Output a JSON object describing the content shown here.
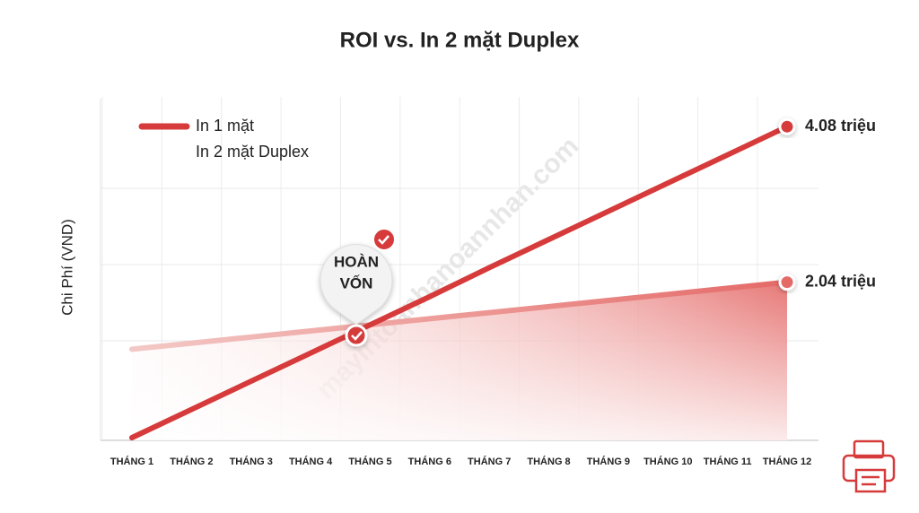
{
  "chart_data": {
    "type": "line",
    "title": "ROI vs. In 2 mặt  Duplex",
    "y_label": "Chi Phí (VND)",
    "categories": [
      "THÁNG 1",
      "THÁNG 2",
      "THÁNG 3",
      "THÁNG 4",
      "THÁNG 5",
      "THÁNG 6",
      "THÁNG 7",
      "THÁNG 8",
      "THÁNG 9",
      "THÁNG 10",
      "THÁNG 11",
      "THÁNG 12"
    ],
    "series": [
      {
        "name": "In 1 mặt",
        "color": "#d63a3a",
        "values": [
          0,
          0.37,
          0.74,
          1.11,
          1.48,
          1.85,
          2.23,
          2.6,
          2.97,
          3.34,
          3.71,
          4.08
        ],
        "value_labels": [
          null,
          null,
          null,
          null,
          null,
          null,
          null,
          null,
          null,
          null,
          null,
          "4.08 triệu"
        ]
      },
      {
        "name": "In 2 mặt Duplex",
        "color": "#e46a68",
        "values": [
          1.16,
          1.24,
          1.32,
          1.4,
          1.48,
          1.56,
          1.64,
          1.72,
          1.8,
          1.88,
          1.96,
          2.04
        ],
        "value_labels": [
          null,
          null,
          null,
          null,
          null,
          null,
          null,
          null,
          null,
          null,
          null,
          "2.04 triệu"
        ]
      }
    ],
    "ylim": [
      0,
      4.5
    ],
    "grid": true,
    "annotation": [
      "HOÀN",
      "VỐN"
    ],
    "watermark": "mayintoanhanoannhan.com"
  }
}
